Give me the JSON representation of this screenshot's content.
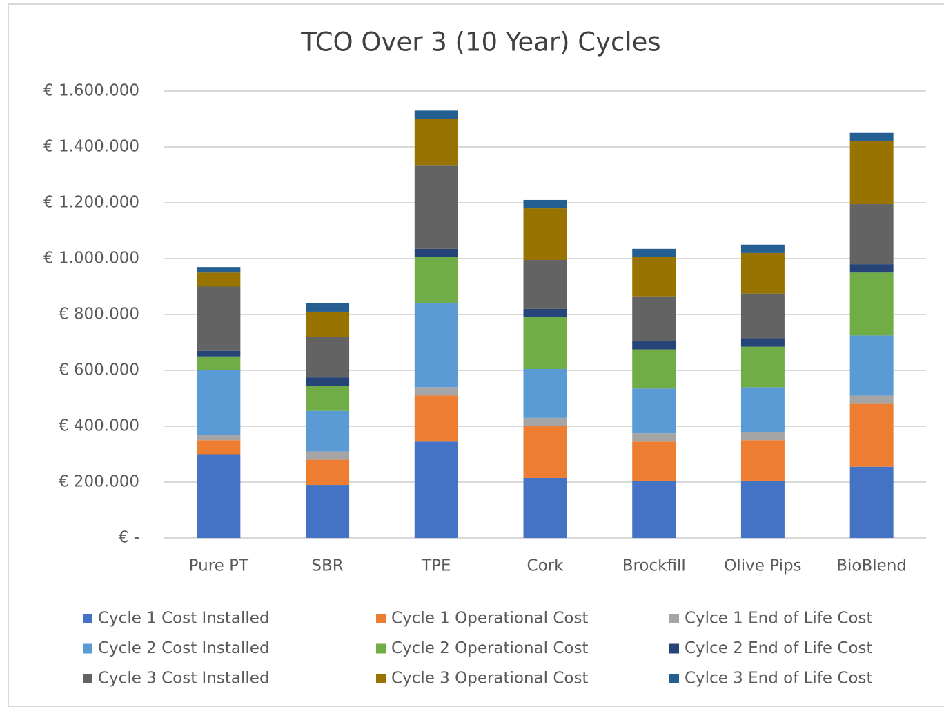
{
  "chart_data": {
    "type": "stacked_bar",
    "title": "TCO Over 3 (10 Year) Cycles",
    "categories": [
      "Pure PT",
      "SBR",
      "TPE",
      "Cork",
      "Brockfill",
      "Olive Pips",
      "BioBlend"
    ],
    "series": [
      {
        "name": "Cycle 1 Cost Installed",
        "color": "#4472c4",
        "values": [
          300000,
          190000,
          345000,
          215000,
          205000,
          205000,
          255000
        ]
      },
      {
        "name": "Cycle 1 Operational Cost",
        "color": "#ed7d31",
        "values": [
          50000,
          90000,
          165000,
          185000,
          140000,
          145000,
          225000
        ]
      },
      {
        "name": "Cylce 1 End of Life Cost",
        "color": "#a5a5a5",
        "values": [
          20000,
          30000,
          30000,
          30000,
          30000,
          30000,
          30000
        ]
      },
      {
        "name": "Cycle 2 Cost Installed",
        "color": "#5b9bd5",
        "values": [
          230000,
          145000,
          300000,
          175000,
          160000,
          160000,
          215000
        ]
      },
      {
        "name": "Cycle 2 Operational Cost",
        "color": "#70ad47",
        "values": [
          50000,
          90000,
          165000,
          185000,
          140000,
          145000,
          225000
        ]
      },
      {
        "name": "Cylce 2 End of Life Cost",
        "color": "#264478",
        "values": [
          20000,
          30000,
          30000,
          30000,
          30000,
          30000,
          30000
        ]
      },
      {
        "name": "Cycle 3 Cost Installed",
        "color": "#636363",
        "values": [
          230000,
          145000,
          300000,
          175000,
          160000,
          160000,
          215000
        ]
      },
      {
        "name": "Cycle 3 Operational Cost",
        "color": "#997300",
        "values": [
          50000,
          90000,
          165000,
          185000,
          140000,
          145000,
          225000
        ]
      },
      {
        "name": "Cylce 3 End of Life Cost",
        "color": "#255e91",
        "values": [
          20000,
          30000,
          30000,
          30000,
          30000,
          30000,
          30000
        ]
      }
    ],
    "ylim": [
      0,
      1600000
    ],
    "yticks": [
      {
        "value": 0,
        "label": "€ -"
      },
      {
        "value": 200000,
        "label": "€ 200.000"
      },
      {
        "value": 400000,
        "label": "€ 400.000"
      },
      {
        "value": 600000,
        "label": "€ 600.000"
      },
      {
        "value": 800000,
        "label": "€ 800.000"
      },
      {
        "value": 1000000,
        "label": "€ 1.000.000"
      },
      {
        "value": 1200000,
        "label": "€ 1.200.000"
      },
      {
        "value": 1400000,
        "label": "€ 1.400.000"
      },
      {
        "value": 1600000,
        "label": "€ 1.600.000"
      }
    ],
    "grid": true,
    "legend": "bottom"
  }
}
